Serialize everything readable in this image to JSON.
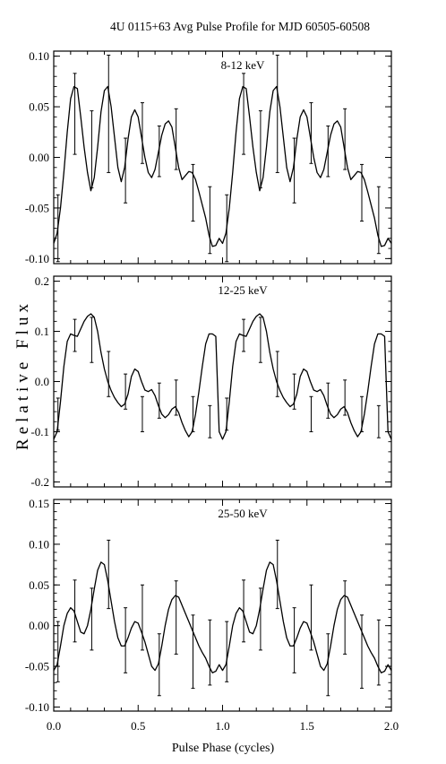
{
  "title": "4U 0115+63 Avg Pulse Profile for MJD 60505-60508",
  "xlabel": "Pulse Phase (cycles)",
  "ylabel": "Relative Flux",
  "chart_data": [
    {
      "type": "line",
      "band_label": "8-12 keV",
      "xlim": [
        0.0,
        2.0
      ],
      "ylim": [
        -0.105,
        0.105
      ],
      "xticks": [
        "0.0",
        "0.5",
        "1.0",
        "1.5",
        "2.0"
      ],
      "yticks": [
        {
          "value": 0.1,
          "label": "0.10"
        },
        {
          "value": 0.05,
          "label": "0.05"
        },
        {
          "value": 0.0,
          "label": "0.00"
        },
        {
          "value": -0.05,
          "label": "-0.05"
        },
        {
          "value": -0.1,
          "label": "-0.10"
        }
      ],
      "bins": {
        "x": [
          0.025,
          0.125,
          0.225,
          0.325,
          0.425,
          0.525,
          0.625,
          0.725,
          0.825,
          0.925
        ],
        "y": [
          -0.07,
          0.043,
          0.008,
          0.043,
          -0.013,
          0.024,
          0.006,
          0.018,
          -0.035,
          -0.062
        ],
        "err": [
          0.033,
          0.04,
          0.038,
          0.058,
          0.032,
          0.03,
          0.025,
          0.03,
          0.028,
          0.033
        ]
      },
      "curve": {
        "x": [
          0.0,
          0.02,
          0.04,
          0.06,
          0.08,
          0.1,
          0.12,
          0.14,
          0.16,
          0.18,
          0.2,
          0.22,
          0.24,
          0.26,
          0.28,
          0.3,
          0.32,
          0.34,
          0.36,
          0.38,
          0.4,
          0.42,
          0.44,
          0.46,
          0.48,
          0.5,
          0.52,
          0.54,
          0.56,
          0.58,
          0.6,
          0.62,
          0.64,
          0.66,
          0.68,
          0.7,
          0.72,
          0.74,
          0.76,
          0.78,
          0.8,
          0.82,
          0.84,
          0.86,
          0.88,
          0.9,
          0.92,
          0.94,
          0.96,
          0.98,
          1.0
        ],
        "y": [
          -0.085,
          -0.075,
          -0.05,
          -0.015,
          0.025,
          0.058,
          0.07,
          0.068,
          0.04,
          0.01,
          -0.015,
          -0.033,
          -0.02,
          0.01,
          0.045,
          0.066,
          0.07,
          0.05,
          0.02,
          -0.01,
          -0.024,
          -0.01,
          0.018,
          0.04,
          0.047,
          0.04,
          0.02,
          0.0,
          -0.015,
          -0.02,
          -0.012,
          0.005,
          0.022,
          0.033,
          0.036,
          0.03,
          0.01,
          -0.01,
          -0.022,
          -0.018,
          -0.014,
          -0.015,
          -0.022,
          -0.034,
          -0.047,
          -0.06,
          -0.077,
          -0.088,
          -0.087,
          -0.08,
          -0.085
        ]
      }
    },
    {
      "type": "line",
      "band_label": "12-25 keV",
      "xlim": [
        0.0,
        2.0
      ],
      "ylim": [
        -0.21,
        0.21
      ],
      "xticks": [
        "0.0",
        "0.5",
        "1.0",
        "1.5",
        "2.0"
      ],
      "yticks": [
        {
          "value": 0.2,
          "label": "0.2"
        },
        {
          "value": 0.1,
          "label": "0.1"
        },
        {
          "value": 0.0,
          "label": "0.0"
        },
        {
          "value": -0.1,
          "label": "-0.1"
        },
        {
          "value": -0.2,
          "label": "-0.2"
        }
      ],
      "bins": {
        "x": [
          0.025,
          0.125,
          0.225,
          0.325,
          0.425,
          0.525,
          0.625,
          0.725,
          0.825,
          0.925
        ],
        "y": [
          -0.065,
          0.092,
          0.083,
          0.015,
          -0.02,
          -0.065,
          -0.038,
          -0.032,
          -0.065,
          -0.08
        ],
        "err": [
          0.032,
          0.032,
          0.045,
          0.045,
          0.035,
          0.035,
          0.035,
          0.035,
          0.035,
          0.032
        ]
      },
      "curve": {
        "x": [
          0.0,
          0.02,
          0.04,
          0.06,
          0.08,
          0.1,
          0.12,
          0.14,
          0.16,
          0.18,
          0.2,
          0.22,
          0.24,
          0.26,
          0.28,
          0.3,
          0.32,
          0.34,
          0.36,
          0.38,
          0.4,
          0.42,
          0.44,
          0.46,
          0.48,
          0.5,
          0.52,
          0.54,
          0.56,
          0.58,
          0.6,
          0.62,
          0.64,
          0.66,
          0.68,
          0.7,
          0.72,
          0.74,
          0.76,
          0.78,
          0.8,
          0.82,
          0.84,
          0.86,
          0.88,
          0.9,
          0.92,
          0.94,
          0.96,
          0.98,
          1.0
        ],
        "y": [
          -0.115,
          -0.1,
          -0.04,
          0.03,
          0.08,
          0.095,
          0.092,
          0.09,
          0.105,
          0.12,
          0.13,
          0.135,
          0.128,
          0.1,
          0.058,
          0.025,
          0.0,
          -0.018,
          -0.032,
          -0.042,
          -0.05,
          -0.045,
          -0.025,
          0.01,
          0.025,
          0.02,
          0.0,
          -0.017,
          -0.02,
          -0.016,
          -0.028,
          -0.048,
          -0.065,
          -0.072,
          -0.066,
          -0.055,
          -0.05,
          -0.062,
          -0.082,
          -0.098,
          -0.11,
          -0.1,
          -0.065,
          -0.02,
          0.03,
          0.075,
          0.095,
          0.095,
          0.09,
          -0.1,
          -0.115
        ]
      }
    },
    {
      "type": "line",
      "band_label": "25-50 keV",
      "xlim": [
        0.0,
        2.0
      ],
      "ylim": [
        -0.105,
        0.155
      ],
      "xticks": [
        "0.0",
        "0.5",
        "1.0",
        "1.5",
        "2.0"
      ],
      "yticks": [
        {
          "value": 0.15,
          "label": "0.15"
        },
        {
          "value": 0.1,
          "label": "0.10"
        },
        {
          "value": 0.05,
          "label": "0.05"
        },
        {
          "value": 0.0,
          "label": "0.00"
        },
        {
          "value": -0.05,
          "label": "-0.05"
        },
        {
          "value": -0.1,
          "label": "-0.10"
        }
      ],
      "bins": {
        "x": [
          0.025,
          0.125,
          0.225,
          0.325,
          0.425,
          0.525,
          0.625,
          0.725,
          0.825,
          0.925
        ],
        "y": [
          -0.032,
          0.018,
          0.008,
          0.063,
          -0.018,
          0.01,
          -0.048,
          0.01,
          -0.032,
          -0.033
        ],
        "err": [
          0.037,
          0.038,
          0.038,
          0.042,
          0.04,
          0.04,
          0.038,
          0.045,
          0.045,
          0.04
        ]
      },
      "curve": {
        "x": [
          0.0,
          0.02,
          0.04,
          0.06,
          0.08,
          0.1,
          0.12,
          0.14,
          0.16,
          0.18,
          0.2,
          0.22,
          0.24,
          0.26,
          0.28,
          0.3,
          0.32,
          0.34,
          0.36,
          0.38,
          0.4,
          0.42,
          0.44,
          0.46,
          0.48,
          0.5,
          0.52,
          0.54,
          0.56,
          0.58,
          0.6,
          0.62,
          0.64,
          0.66,
          0.68,
          0.7,
          0.72,
          0.74,
          0.76,
          0.78,
          0.8,
          0.82,
          0.84,
          0.86,
          0.88,
          0.9,
          0.92,
          0.94,
          0.96,
          0.98,
          1.0
        ],
        "y": [
          -0.055,
          -0.048,
          -0.025,
          0.0,
          0.015,
          0.022,
          0.018,
          0.005,
          -0.008,
          -0.01,
          0.0,
          0.02,
          0.045,
          0.068,
          0.078,
          0.075,
          0.055,
          0.03,
          0.005,
          -0.015,
          -0.025,
          -0.025,
          -0.015,
          -0.003,
          0.005,
          0.003,
          -0.008,
          -0.02,
          -0.035,
          -0.05,
          -0.055,
          -0.047,
          -0.025,
          0.0,
          0.02,
          0.032,
          0.037,
          0.035,
          0.025,
          0.015,
          0.005,
          -0.005,
          -0.015,
          -0.025,
          -0.033,
          -0.04,
          -0.05,
          -0.058,
          -0.056,
          -0.048,
          -0.055
        ]
      }
    }
  ]
}
